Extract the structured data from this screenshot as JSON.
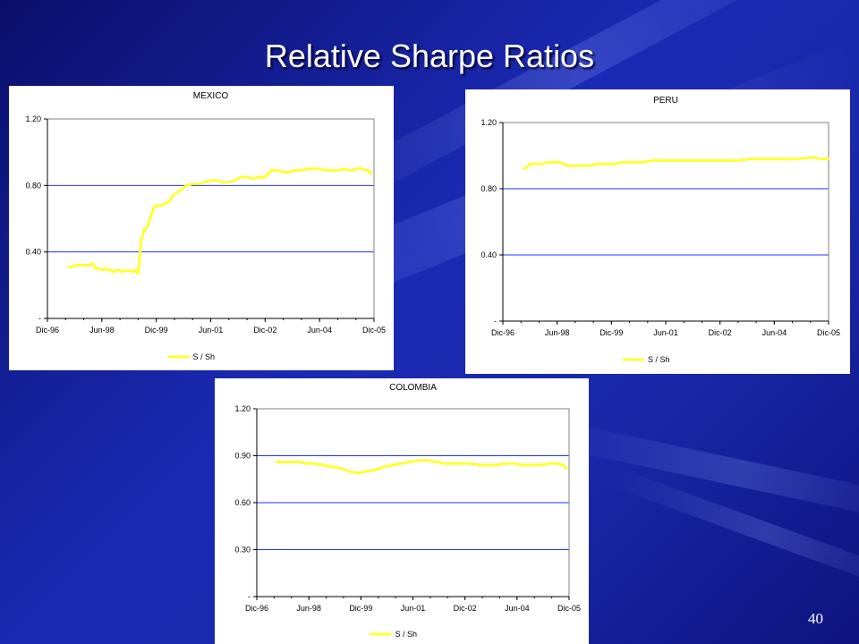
{
  "slide": {
    "title": "Relative Sharpe Ratios",
    "page_number": "40"
  },
  "colors": {
    "series": "#ffff33",
    "grid": "#2030ff",
    "chart_bg": "#ffffff"
  },
  "chart_data": [
    {
      "type": "line",
      "title": "MEXICO",
      "xlabel": "",
      "ylabel": "",
      "x_ticks": [
        "Dic-96",
        "Jun-98",
        "Dic-99",
        "Jun-01",
        "Dic-02",
        "Jun-04",
        "Dic-05"
      ],
      "y_ticks": [
        "-",
        "0.40",
        "0.80",
        "1.20"
      ],
      "y_tick_values": [
        0,
        0.4,
        0.8,
        1.2
      ],
      "ylim": [
        0,
        1.2
      ],
      "xlim": [
        0,
        108
      ],
      "grid": "horizontal",
      "legend_position": "bottom",
      "series": [
        {
          "name": "S / Sh",
          "x": [
            7,
            8,
            9,
            11,
            13,
            14,
            15,
            16,
            17,
            18,
            19,
            20,
            21,
            22,
            23,
            24,
            25,
            26,
            27,
            28,
            29,
            30,
            31,
            32,
            33,
            34,
            35,
            36,
            38,
            40,
            42,
            44,
            46,
            48,
            50,
            52,
            54,
            56,
            58,
            60,
            62,
            64,
            66,
            68,
            70,
            72,
            74,
            76,
            78,
            80,
            82,
            84,
            86,
            88,
            90,
            92,
            94,
            96,
            98,
            100,
            102,
            104,
            106,
            107
          ],
          "y": [
            0.31,
            0.31,
            0.32,
            0.32,
            0.32,
            0.32,
            0.33,
            0.3,
            0.3,
            0.29,
            0.3,
            0.29,
            0.29,
            0.28,
            0.29,
            0.29,
            0.28,
            0.29,
            0.29,
            0.28,
            0.29,
            0.27,
            0.47,
            0.53,
            0.55,
            0.6,
            0.66,
            0.68,
            0.68,
            0.7,
            0.75,
            0.77,
            0.8,
            0.81,
            0.81,
            0.82,
            0.83,
            0.83,
            0.82,
            0.82,
            0.83,
            0.85,
            0.85,
            0.84,
            0.85,
            0.85,
            0.89,
            0.89,
            0.88,
            0.88,
            0.89,
            0.89,
            0.9,
            0.9,
            0.9,
            0.89,
            0.89,
            0.89,
            0.9,
            0.89,
            0.9,
            0.9,
            0.89,
            0.87
          ]
        }
      ]
    },
    {
      "type": "line",
      "title": "PERU",
      "xlabel": "",
      "ylabel": "",
      "x_ticks": [
        "Dic-96",
        "Jun-98",
        "Dic-99",
        "Jun-01",
        "Dic-02",
        "Jun-04",
        "Dic-05"
      ],
      "y_ticks": [
        "-",
        "0.40",
        "0.80",
        "1.20"
      ],
      "y_tick_values": [
        0,
        0.4,
        0.8,
        1.2
      ],
      "ylim": [
        0,
        1.2
      ],
      "xlim": [
        0,
        108
      ],
      "grid": "horizontal",
      "legend_position": "bottom",
      "series": [
        {
          "name": "S / Sh",
          "x": [
            7,
            8,
            9,
            11,
            13,
            15,
            17,
            19,
            21,
            23,
            25,
            27,
            29,
            31,
            34,
            37,
            40,
            43,
            46,
            50,
            54,
            58,
            62,
            66,
            70,
            74,
            78,
            82,
            86,
            90,
            94,
            98,
            102,
            106,
            108
          ],
          "y": [
            0.92,
            0.93,
            0.95,
            0.95,
            0.95,
            0.96,
            0.96,
            0.96,
            0.94,
            0.94,
            0.94,
            0.94,
            0.94,
            0.95,
            0.95,
            0.95,
            0.96,
            0.96,
            0.96,
            0.97,
            0.97,
            0.97,
            0.97,
            0.97,
            0.97,
            0.97,
            0.97,
            0.98,
            0.98,
            0.98,
            0.98,
            0.98,
            0.99,
            0.98,
            0.98
          ]
        }
      ]
    },
    {
      "type": "line",
      "title": "COLOMBIA",
      "xlabel": "",
      "ylabel": "",
      "x_ticks": [
        "Dic-96",
        "Jun-98",
        "Dic-99",
        "Jun-01",
        "Dic-02",
        "Jun-04",
        "Dic-05"
      ],
      "y_ticks": [
        "-",
        "0.30",
        "0.60",
        "0.90",
        "1.20"
      ],
      "y_tick_values": [
        0,
        0.3,
        0.6,
        0.9,
        1.2
      ],
      "ylim": [
        0,
        1.2
      ],
      "xlim": [
        0,
        108
      ],
      "grid": "horizontal",
      "legend_position": "bottom",
      "series": [
        {
          "name": "S / Sh",
          "x": [
            7,
            10,
            13,
            15,
            17,
            20,
            23,
            26,
            29,
            32,
            35,
            38,
            41,
            44,
            47,
            50,
            53,
            56,
            59,
            62,
            65,
            68,
            71,
            74,
            77,
            80,
            83,
            86,
            89,
            92,
            95,
            98,
            101,
            104,
            106,
            107
          ],
          "y": [
            0.86,
            0.86,
            0.86,
            0.86,
            0.85,
            0.85,
            0.84,
            0.83,
            0.82,
            0.8,
            0.79,
            0.8,
            0.81,
            0.83,
            0.84,
            0.85,
            0.86,
            0.87,
            0.87,
            0.86,
            0.85,
            0.85,
            0.85,
            0.85,
            0.84,
            0.84,
            0.84,
            0.85,
            0.85,
            0.84,
            0.84,
            0.84,
            0.85,
            0.85,
            0.84,
            0.82
          ]
        }
      ]
    }
  ]
}
